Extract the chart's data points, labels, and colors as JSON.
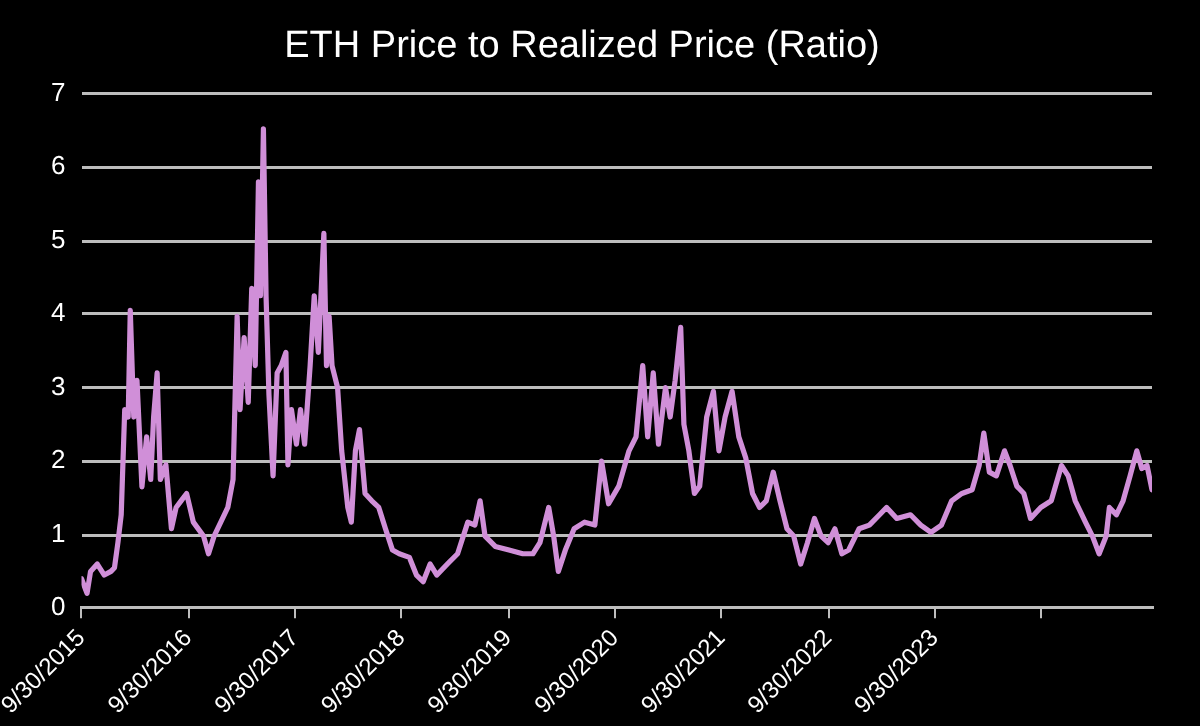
{
  "chart_data": {
    "type": "line",
    "title": "ETH Price to Realized Price (Ratio)",
    "x": [
      "2015-09-30",
      "2015-10-19",
      "2015-10-31",
      "2015-11-23",
      "2015-12-17",
      "2016-01-09",
      "2016-01-21",
      "2016-02-02",
      "2016-02-13",
      "2016-02-25",
      "2016-03-08",
      "2016-03-15",
      "2016-03-27",
      "2016-04-07",
      "2016-04-24",
      "2016-05-10",
      "2016-05-24",
      "2016-06-03",
      "2016-06-15",
      "2016-06-26",
      "2016-07-15",
      "2016-08-03",
      "2016-08-19",
      "2016-09-05",
      "2016-09-24",
      "2016-10-17",
      "2016-11-21",
      "2016-12-08",
      "2016-12-27",
      "2017-01-19",
      "2017-02-12",
      "2017-03-02",
      "2017-03-16",
      "2017-03-26",
      "2017-04-09",
      "2017-04-23",
      "2017-05-05",
      "2017-05-17",
      "2017-05-28",
      "2017-06-04",
      "2017-06-14",
      "2017-06-23",
      "2017-07-03",
      "2017-07-17",
      "2017-07-31",
      "2017-08-14",
      "2017-08-30",
      "2017-09-06",
      "2017-09-18",
      "2017-10-05",
      "2017-10-19",
      "2017-11-02",
      "2017-11-21",
      "2017-12-05",
      "2017-12-19",
      "2018-01-07",
      "2018-01-16",
      "2018-01-25",
      "2018-02-04",
      "2018-02-23",
      "2018-03-09",
      "2018-03-30",
      "2018-04-11",
      "2018-04-25",
      "2018-05-09",
      "2018-05-28",
      "2018-06-20",
      "2018-07-14",
      "2018-08-06",
      "2018-08-30",
      "2018-09-22",
      "2018-10-27",
      "2018-11-20",
      "2018-12-13",
      "2019-01-06",
      "2019-01-29",
      "2019-03-06",
      "2019-04-10",
      "2019-05-15",
      "2019-06-08",
      "2019-06-26",
      "2019-07-13",
      "2019-08-17",
      "2019-10-03",
      "2019-11-19",
      "2019-12-24",
      "2020-01-17",
      "2020-02-16",
      "2020-03-04",
      "2020-03-20",
      "2020-04-13",
      "2020-05-13",
      "2020-06-18",
      "2020-07-23",
      "2020-08-15",
      "2020-09-08",
      "2020-10-13",
      "2020-11-17",
      "2020-12-11",
      "2021-01-03",
      "2021-01-20",
      "2021-02-08",
      "2021-02-26",
      "2021-03-22",
      "2021-04-07",
      "2021-04-24",
      "2021-05-13",
      "2021-05-24",
      "2021-06-10",
      "2021-06-29",
      "2021-07-17",
      "2021-08-10",
      "2021-09-02",
      "2021-09-21",
      "2021-10-12",
      "2021-11-05",
      "2021-11-28",
      "2021-12-22",
      "2022-01-14",
      "2022-02-07",
      "2022-03-02",
      "2022-03-26",
      "2022-04-18",
      "2022-05-12",
      "2022-06-04",
      "2022-06-28",
      "2022-07-21",
      "2022-08-14",
      "2022-09-06",
      "2022-09-30",
      "2022-10-23",
      "2022-11-16",
      "2022-12-09",
      "2023-01-14",
      "2023-02-18",
      "2023-03-25",
      "2023-04-18",
      "2023-05-23",
      "2023-07-09",
      "2023-08-13",
      "2023-09-17",
      "2023-10-23",
      "2023-11-27",
      "2024-01-01",
      "2024-02-05",
      "2024-02-29",
      "2024-03-16",
      "2024-04-04",
      "2024-04-28",
      "2024-05-26",
      "2024-06-14",
      "2024-07-07",
      "2024-07-31",
      "2024-08-23",
      "2024-09-27",
      "2024-11-02",
      "2024-12-07",
      "2024-12-30",
      "2025-01-23",
      "2025-02-27",
      "2025-03-23",
      "2025-04-15",
      "2025-05-09",
      "2025-05-20",
      "2025-06-13",
      "2025-07-06",
      "2025-07-30",
      "2025-08-22",
      "2025-09-08",
      "2025-09-26",
      "2025-10-13"
    ],
    "series": [
      {
        "color": "#d08fd8",
        "values": [
          0.4,
          0.2,
          0.5,
          0.6,
          0.45,
          0.5,
          0.55,
          0.9,
          1.27,
          2.7,
          2.6,
          4.05,
          2.6,
          3.1,
          1.65,
          2.33,
          1.75,
          2.6,
          3.2,
          1.75,
          1.95,
          1.08,
          1.37,
          1.46,
          1.56,
          1.17,
          0.98,
          0.74,
          0.98,
          1.17,
          1.37,
          1.75,
          3.97,
          2.7,
          3.68,
          2.8,
          4.35,
          3.3,
          5.8,
          4.25,
          6.52,
          4.25,
          2.9,
          1.8,
          3.2,
          3.3,
          3.48,
          1.95,
          2.7,
          2.23,
          2.7,
          2.23,
          3.3,
          4.25,
          3.48,
          5.1,
          3.3,
          3.97,
          3.3,
          3.0,
          2.14,
          1.37,
          1.17,
          2.14,
          2.43,
          1.56,
          1.46,
          1.37,
          1.08,
          0.79,
          0.74,
          0.69,
          0.45,
          0.36,
          0.6,
          0.45,
          0.6,
          0.74,
          1.17,
          1.13,
          1.46,
          0.98,
          0.84,
          0.79,
          0.74,
          0.74,
          0.89,
          1.37,
          0.98,
          0.5,
          0.79,
          1.08,
          1.17,
          1.13,
          2.0,
          1.42,
          1.66,
          2.14,
          2.33,
          3.3,
          2.33,
          3.2,
          2.23,
          3.0,
          2.6,
          3.1,
          3.82,
          2.5,
          2.14,
          1.56,
          1.66,
          2.6,
          2.95,
          2.14,
          2.6,
          2.95,
          2.33,
          2.04,
          1.56,
          1.37,
          1.46,
          1.85,
          1.46,
          1.08,
          0.98,
          0.6,
          0.89,
          1.22,
          0.98,
          0.89,
          1.08,
          0.74,
          0.79,
          1.08,
          1.13,
          1.27,
          1.37,
          1.22,
          1.27,
          1.13,
          1.03,
          1.13,
          1.46,
          1.56,
          1.61,
          1.94,
          2.38,
          1.85,
          1.8,
          2.14,
          1.94,
          1.66,
          1.56,
          1.22,
          1.37,
          1.46,
          1.94,
          1.8,
          1.46,
          1.17,
          0.98,
          0.74,
          0.98,
          1.37,
          1.27,
          1.46,
          1.8,
          2.14,
          1.9,
          1.94,
          1.61
        ]
      }
    ],
    "xlim": [
      "2015-09-30",
      "2025-10-13"
    ],
    "xticks": [
      {
        "value": "2015-09-30",
        "label": "9/30/2015"
      },
      {
        "value": "2016-09-30",
        "label": "9/30/2016"
      },
      {
        "value": "2017-09-30",
        "label": "9/30/2017"
      },
      {
        "value": "2018-09-30",
        "label": "9/30/2018"
      },
      {
        "value": "2019-09-30",
        "label": "9/30/2019"
      },
      {
        "value": "2020-09-30",
        "label": "9/30/2020"
      },
      {
        "value": "2021-09-30",
        "label": "9/30/2021"
      },
      {
        "value": "2022-09-30",
        "label": "9/30/2022"
      },
      {
        "value": "2023-09-30",
        "label": "9/30/2023"
      },
      {
        "value": "2024-09-30",
        "label": null
      }
    ],
    "ylim": [
      0,
      7
    ],
    "yticks": [
      0,
      1,
      2,
      3,
      4,
      5,
      6,
      7
    ],
    "grid": "y",
    "legend": false,
    "marker": "none",
    "line_style": "solid"
  }
}
